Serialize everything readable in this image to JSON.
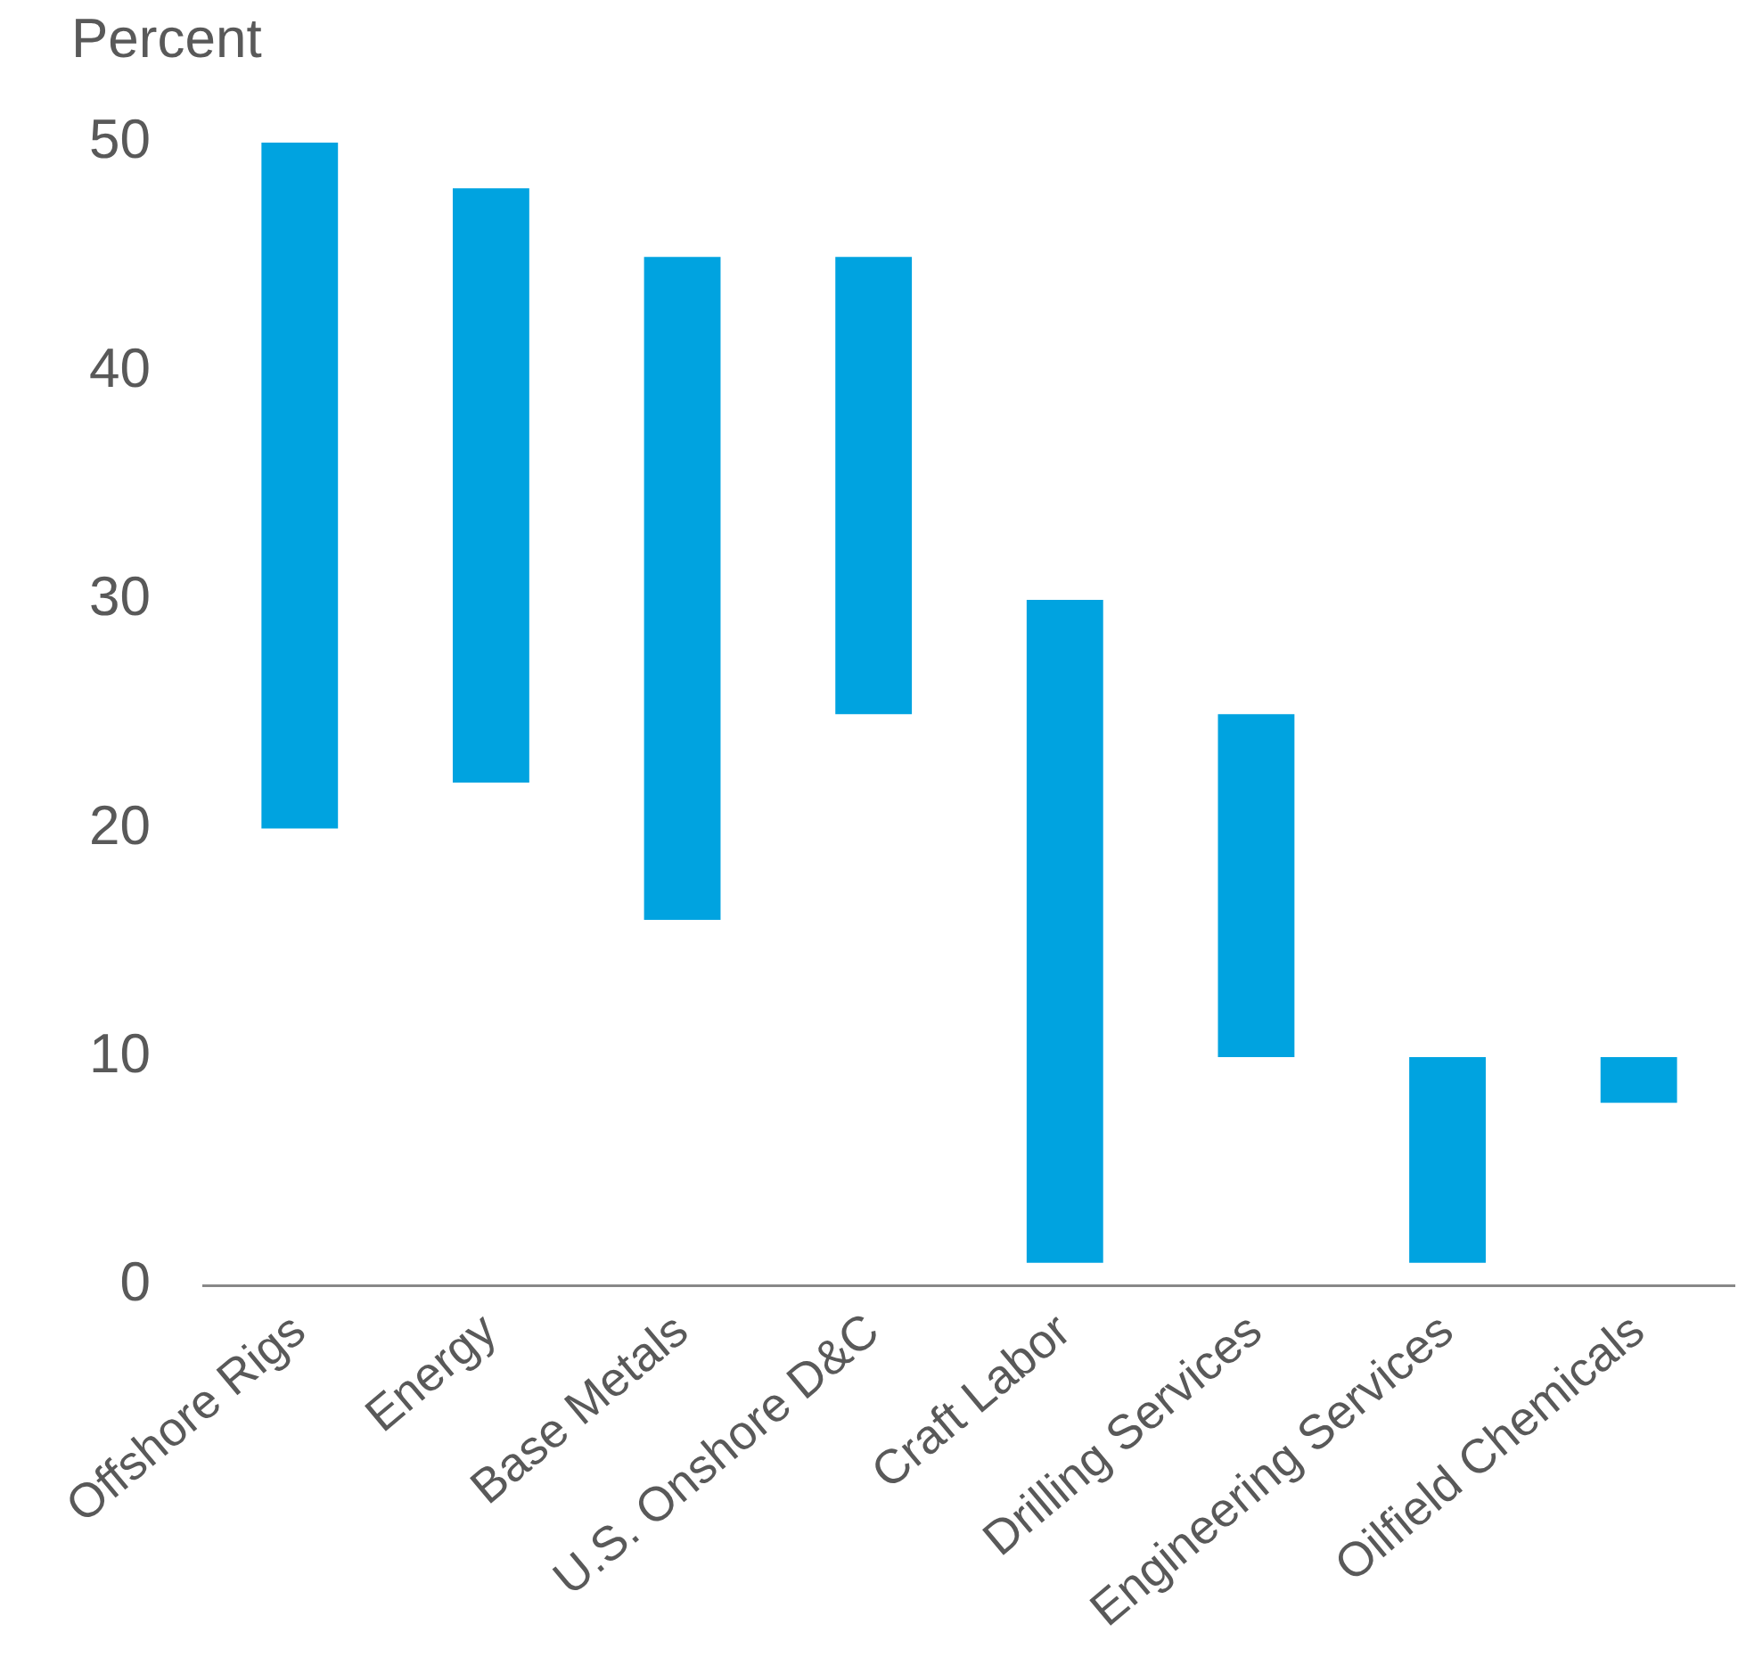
{
  "chart_data": {
    "type": "bar",
    "ylabel": "Percent",
    "categories": [
      "Offshore Rigs",
      "Energy",
      "Base Metals",
      "U.S. Onshore D&C",
      "Craft Labor",
      "Drilling Services",
      "Engineering Services",
      "Oilfield Chemicals"
    ],
    "base": [
      20,
      22,
      16,
      25,
      1,
      10,
      1,
      8
    ],
    "values": [
      30,
      26,
      29,
      20,
      29,
      15,
      9,
      2
    ],
    "color": "#00a3e0",
    "ylim": [
      0,
      50
    ],
    "yticks": [
      0,
      10,
      20,
      30,
      40,
      50
    ],
    "grid": false,
    "legend": false
  }
}
